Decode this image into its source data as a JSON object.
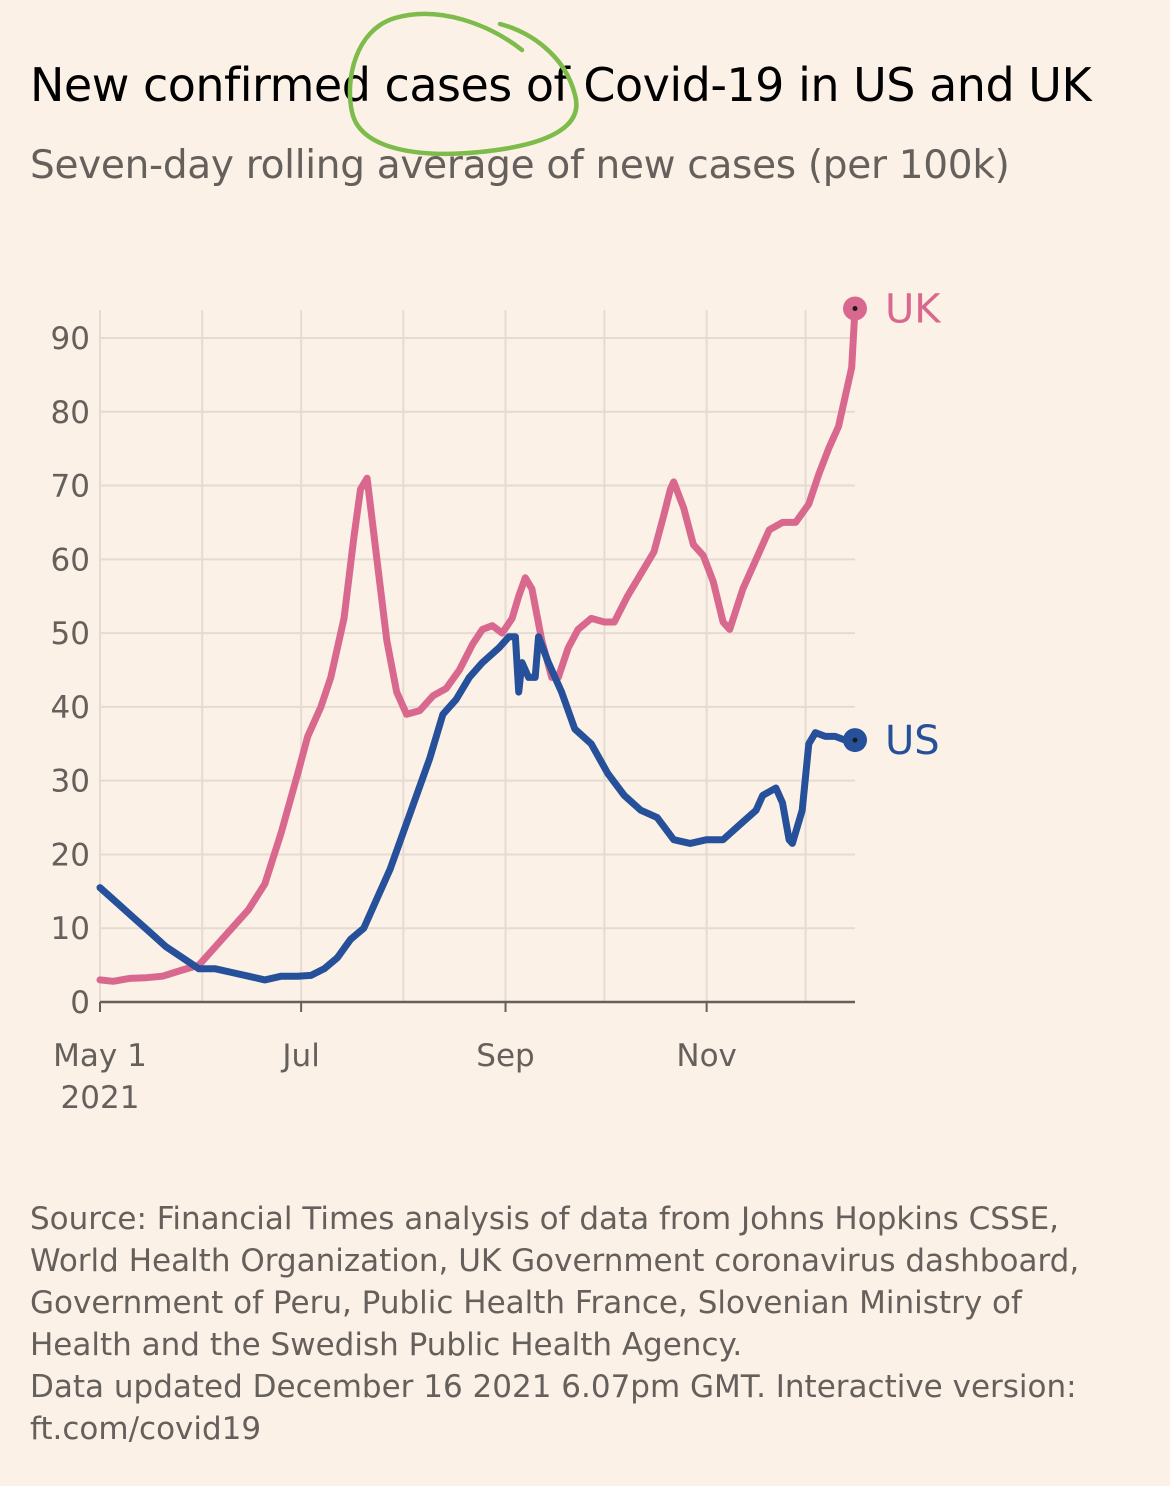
{
  "title": "New confirmed cases of Covid-19 in US and UK",
  "subtitle": "Seven-day rolling average of new cases (per 100k)",
  "source_lines": [
    "Source: Financial Times analysis of data from Johns Hopkins CSSE,",
    "World Health Organization, UK Government coronavirus dashboard,",
    "Government of Peru, Public Health France, Slovenian Ministry of",
    "Health and the Swedish Public Health Agency.",
    "Data updated December 16 2021 6.07pm GMT. Interactive version:",
    "ft.com/covid19"
  ],
  "colors": {
    "background": "#fcf1e7",
    "uk": "#d9688f",
    "us": "#26519a",
    "grid": "#e4dbd3",
    "axis": "#66605c",
    "annotation_circle": "#7dbb4a"
  },
  "chart_data": {
    "type": "line",
    "title": "New confirmed cases of Covid-19 in US and UK",
    "subtitle": "Seven-day rolling average of new cases (per 100k)",
    "xlabel": "",
    "ylabel": "",
    "x_start": "2021-05-01",
    "x_end": "2021-12-16",
    "ylim": [
      0,
      90
    ],
    "y_ticks": [
      0,
      10,
      20,
      30,
      40,
      50,
      60,
      70,
      80,
      90
    ],
    "x_ticks": [
      {
        "date": "2021-05-01",
        "label": "May 1",
        "sublabel": "2021"
      },
      {
        "date": "2021-07-01",
        "label": "Jul",
        "sublabel": ""
      },
      {
        "date": "2021-09-01",
        "label": "Sep",
        "sublabel": ""
      },
      {
        "date": "2021-11-01",
        "label": "Nov",
        "sublabel": ""
      }
    ],
    "grid_dates": [
      "2021-05-01",
      "2021-06-01",
      "2021-07-01",
      "2021-08-01",
      "2021-09-01",
      "2021-10-01",
      "2021-11-01",
      "2021-12-01"
    ],
    "grid": true,
    "legend": "end-of-line labels",
    "series": [
      {
        "name": "UK",
        "color": "#d9688f",
        "points": [
          [
            "2021-05-01",
            3
          ],
          [
            "2021-05-05",
            2.8
          ],
          [
            "2021-05-10",
            3.2
          ],
          [
            "2021-05-15",
            3.3
          ],
          [
            "2021-05-20",
            3.5
          ],
          [
            "2021-05-25",
            4.2
          ],
          [
            "2021-05-31",
            5
          ],
          [
            "2021-06-05",
            7.5
          ],
          [
            "2021-06-10",
            10
          ],
          [
            "2021-06-15",
            12.5
          ],
          [
            "2021-06-20",
            16
          ],
          [
            "2021-06-25",
            23
          ],
          [
            "2021-06-30",
            31
          ],
          [
            "2021-07-03",
            36
          ],
          [
            "2021-07-07",
            40
          ],
          [
            "2021-07-10",
            44
          ],
          [
            "2021-07-14",
            52
          ],
          [
            "2021-07-17",
            63
          ],
          [
            "2021-07-19",
            69.5
          ],
          [
            "2021-07-21",
            71
          ],
          [
            "2021-07-24",
            60
          ],
          [
            "2021-07-27",
            49
          ],
          [
            "2021-07-30",
            42
          ],
          [
            "2021-08-02",
            39
          ],
          [
            "2021-08-06",
            39.5
          ],
          [
            "2021-08-10",
            41.5
          ],
          [
            "2021-08-14",
            42.5
          ],
          [
            "2021-08-18",
            45
          ],
          [
            "2021-08-22",
            48.5
          ],
          [
            "2021-08-25",
            50.5
          ],
          [
            "2021-08-28",
            51
          ],
          [
            "2021-08-31",
            50
          ],
          [
            "2021-09-03",
            52
          ],
          [
            "2021-09-05",
            55
          ],
          [
            "2021-09-07",
            57.5
          ],
          [
            "2021-09-09",
            56
          ],
          [
            "2021-09-12",
            49
          ],
          [
            "2021-09-15",
            44
          ],
          [
            "2021-09-17",
            44
          ],
          [
            "2021-09-20",
            48
          ],
          [
            "2021-09-23",
            50.5
          ],
          [
            "2021-09-27",
            52
          ],
          [
            "2021-10-01",
            51.5
          ],
          [
            "2021-10-04",
            51.5
          ],
          [
            "2021-10-08",
            55
          ],
          [
            "2021-10-12",
            58
          ],
          [
            "2021-10-16",
            61
          ],
          [
            "2021-10-19",
            66
          ],
          [
            "2021-10-21",
            69.5
          ],
          [
            "2021-10-22",
            70.5
          ],
          [
            "2021-10-25",
            67
          ],
          [
            "2021-10-28",
            62
          ],
          [
            "2021-10-31",
            60.5
          ],
          [
            "2021-11-03",
            57
          ],
          [
            "2021-11-06",
            51.5
          ],
          [
            "2021-11-08",
            50.5
          ],
          [
            "2021-11-12",
            56
          ],
          [
            "2021-11-16",
            60
          ],
          [
            "2021-11-20",
            64
          ],
          [
            "2021-11-24",
            65
          ],
          [
            "2021-11-28",
            65
          ],
          [
            "2021-12-02",
            67.5
          ],
          [
            "2021-12-05",
            71.5
          ],
          [
            "2021-12-08",
            75
          ],
          [
            "2021-12-11",
            78
          ],
          [
            "2021-12-13",
            82
          ],
          [
            "2021-12-15",
            86
          ],
          [
            "2021-12-16",
            94
          ]
        ]
      },
      {
        "name": "US",
        "color": "#26519a",
        "points": [
          [
            "2021-05-01",
            15.5
          ],
          [
            "2021-05-06",
            13.5
          ],
          [
            "2021-05-11",
            11.5
          ],
          [
            "2021-05-16",
            9.5
          ],
          [
            "2021-05-21",
            7.5
          ],
          [
            "2021-05-26",
            6
          ],
          [
            "2021-05-31",
            4.5
          ],
          [
            "2021-06-05",
            4.5
          ],
          [
            "2021-06-10",
            4
          ],
          [
            "2021-06-15",
            3.5
          ],
          [
            "2021-06-20",
            3
          ],
          [
            "2021-06-25",
            3.5
          ],
          [
            "2021-06-30",
            3.5
          ],
          [
            "2021-07-04",
            3.6
          ],
          [
            "2021-07-08",
            4.5
          ],
          [
            "2021-07-12",
            6
          ],
          [
            "2021-07-16",
            8.5
          ],
          [
            "2021-07-20",
            10
          ],
          [
            "2021-07-24",
            14
          ],
          [
            "2021-07-28",
            18
          ],
          [
            "2021-08-01",
            23
          ],
          [
            "2021-08-05",
            28
          ],
          [
            "2021-08-09",
            33
          ],
          [
            "2021-08-13",
            39
          ],
          [
            "2021-08-17",
            41
          ],
          [
            "2021-08-21",
            44
          ],
          [
            "2021-08-25",
            46
          ],
          [
            "2021-08-30",
            48
          ],
          [
            "2021-09-02",
            49.5
          ],
          [
            "2021-09-04",
            49.5
          ],
          [
            "2021-09-05",
            42
          ],
          [
            "2021-09-06",
            46
          ],
          [
            "2021-09-08",
            44
          ],
          [
            "2021-09-10",
            44
          ],
          [
            "2021-09-11",
            49.5
          ],
          [
            "2021-09-14",
            46
          ],
          [
            "2021-09-18",
            42
          ],
          [
            "2021-09-22",
            37
          ],
          [
            "2021-09-27",
            35
          ],
          [
            "2021-10-02",
            31
          ],
          [
            "2021-10-07",
            28
          ],
          [
            "2021-10-12",
            26
          ],
          [
            "2021-10-17",
            25
          ],
          [
            "2021-10-22",
            22
          ],
          [
            "2021-10-27",
            21.5
          ],
          [
            "2021-11-01",
            22
          ],
          [
            "2021-11-06",
            22
          ],
          [
            "2021-11-11",
            24
          ],
          [
            "2021-11-16",
            26
          ],
          [
            "2021-11-18",
            28
          ],
          [
            "2021-11-22",
            29
          ],
          [
            "2021-11-24",
            27
          ],
          [
            "2021-11-26",
            22
          ],
          [
            "2021-11-27",
            21.5
          ],
          [
            "2021-11-30",
            26
          ],
          [
            "2021-12-02",
            35
          ],
          [
            "2021-12-04",
            36.5
          ],
          [
            "2021-12-07",
            36
          ],
          [
            "2021-12-10",
            36
          ],
          [
            "2021-12-13",
            35.5
          ],
          [
            "2021-12-16",
            35.5
          ]
        ]
      }
    ]
  }
}
